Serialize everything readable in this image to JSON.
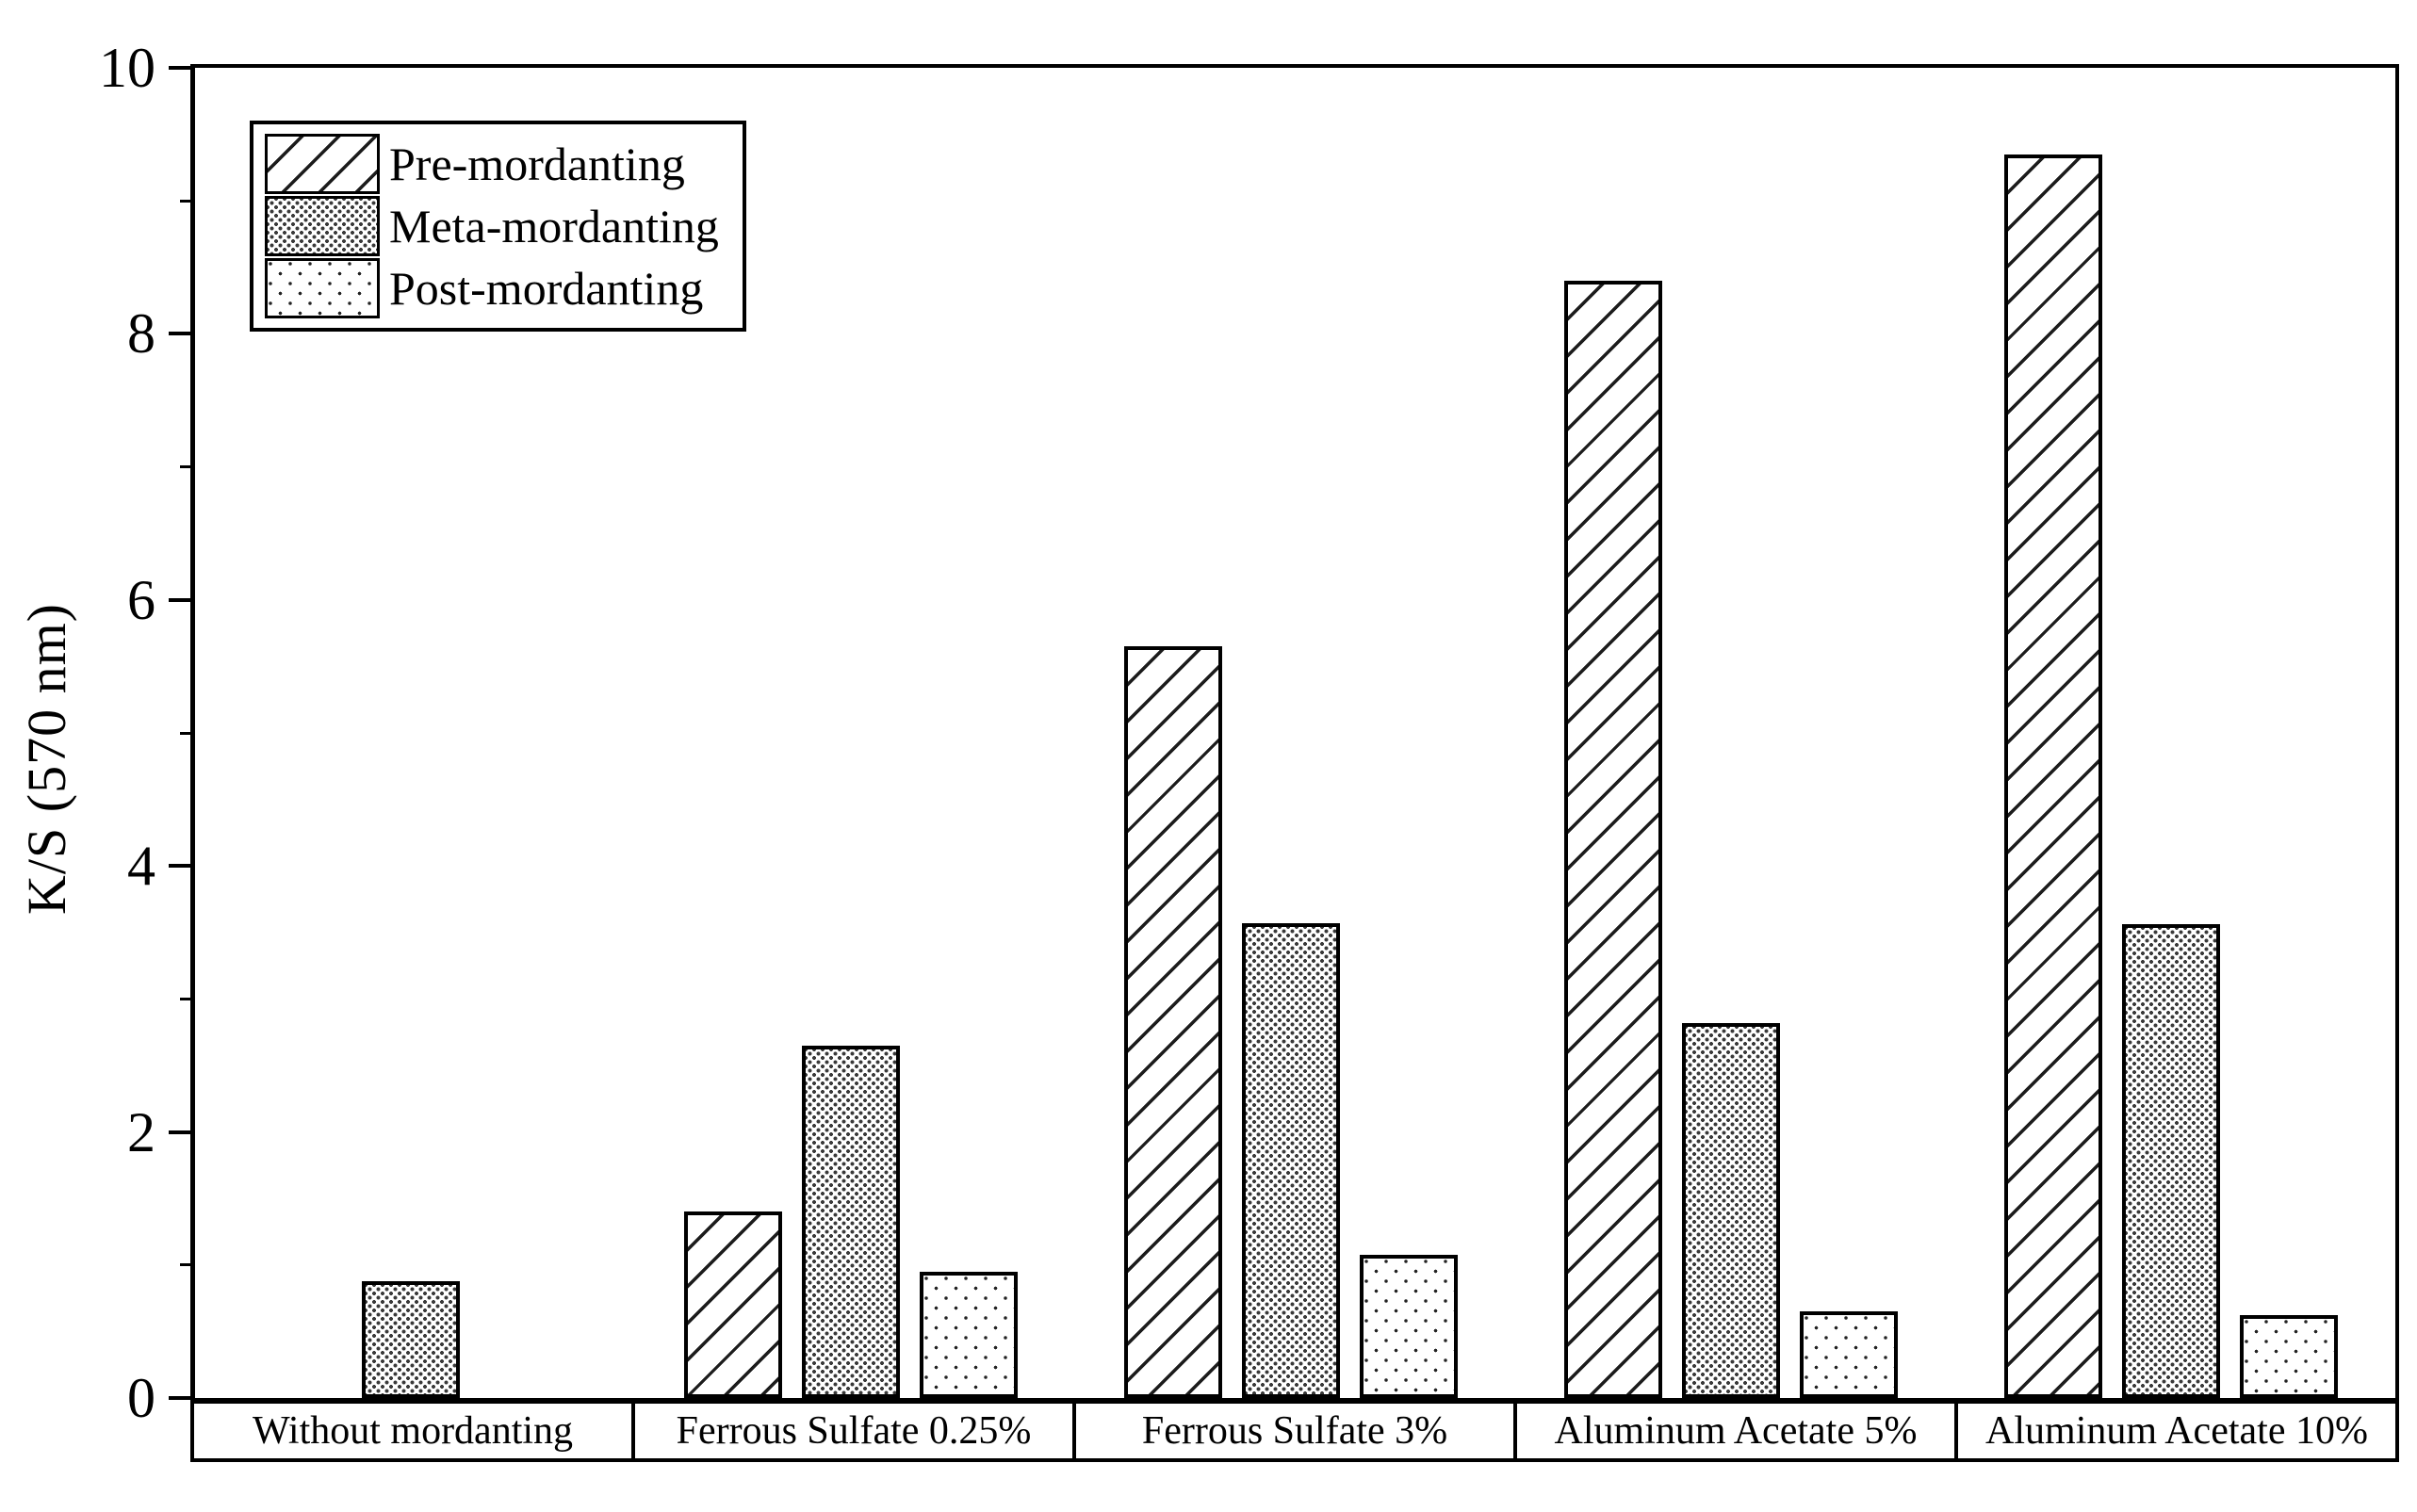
{
  "chart_data": {
    "type": "bar",
    "title": "",
    "xlabel": "",
    "ylabel": "K/S (570 nm)",
    "ylim": [
      0,
      10
    ],
    "y_major_ticks": [
      0,
      2,
      4,
      6,
      8,
      10
    ],
    "y_minor_ticks": [
      1,
      3,
      5,
      7,
      9
    ],
    "grid": false,
    "legend_position": "upper-left-inside",
    "categories": [
      "Without mordanting",
      "Ferrous Sulfate 0.25%",
      "Ferrous Sulfate 3%",
      "Aluminum Acetate 5%",
      "Aluminum Acetate 10%"
    ],
    "series": [
      {
        "name": "Pre-mordanting",
        "pattern": "diagonal-hatch",
        "values": [
          null,
          1.4,
          5.65,
          8.4,
          9.35
        ]
      },
      {
        "name": "Meta-mordanting",
        "pattern": "dense-dots",
        "values": [
          0.88,
          2.65,
          3.57,
          2.82,
          3.56
        ]
      },
      {
        "name": "Post-mordanting",
        "pattern": "sparse-dots",
        "values": [
          null,
          0.95,
          1.08,
          0.65,
          0.62
        ]
      }
    ],
    "colors": {
      "foreground": "#000000",
      "background": "#ffffff",
      "bar_fill": "#ffffff"
    }
  }
}
